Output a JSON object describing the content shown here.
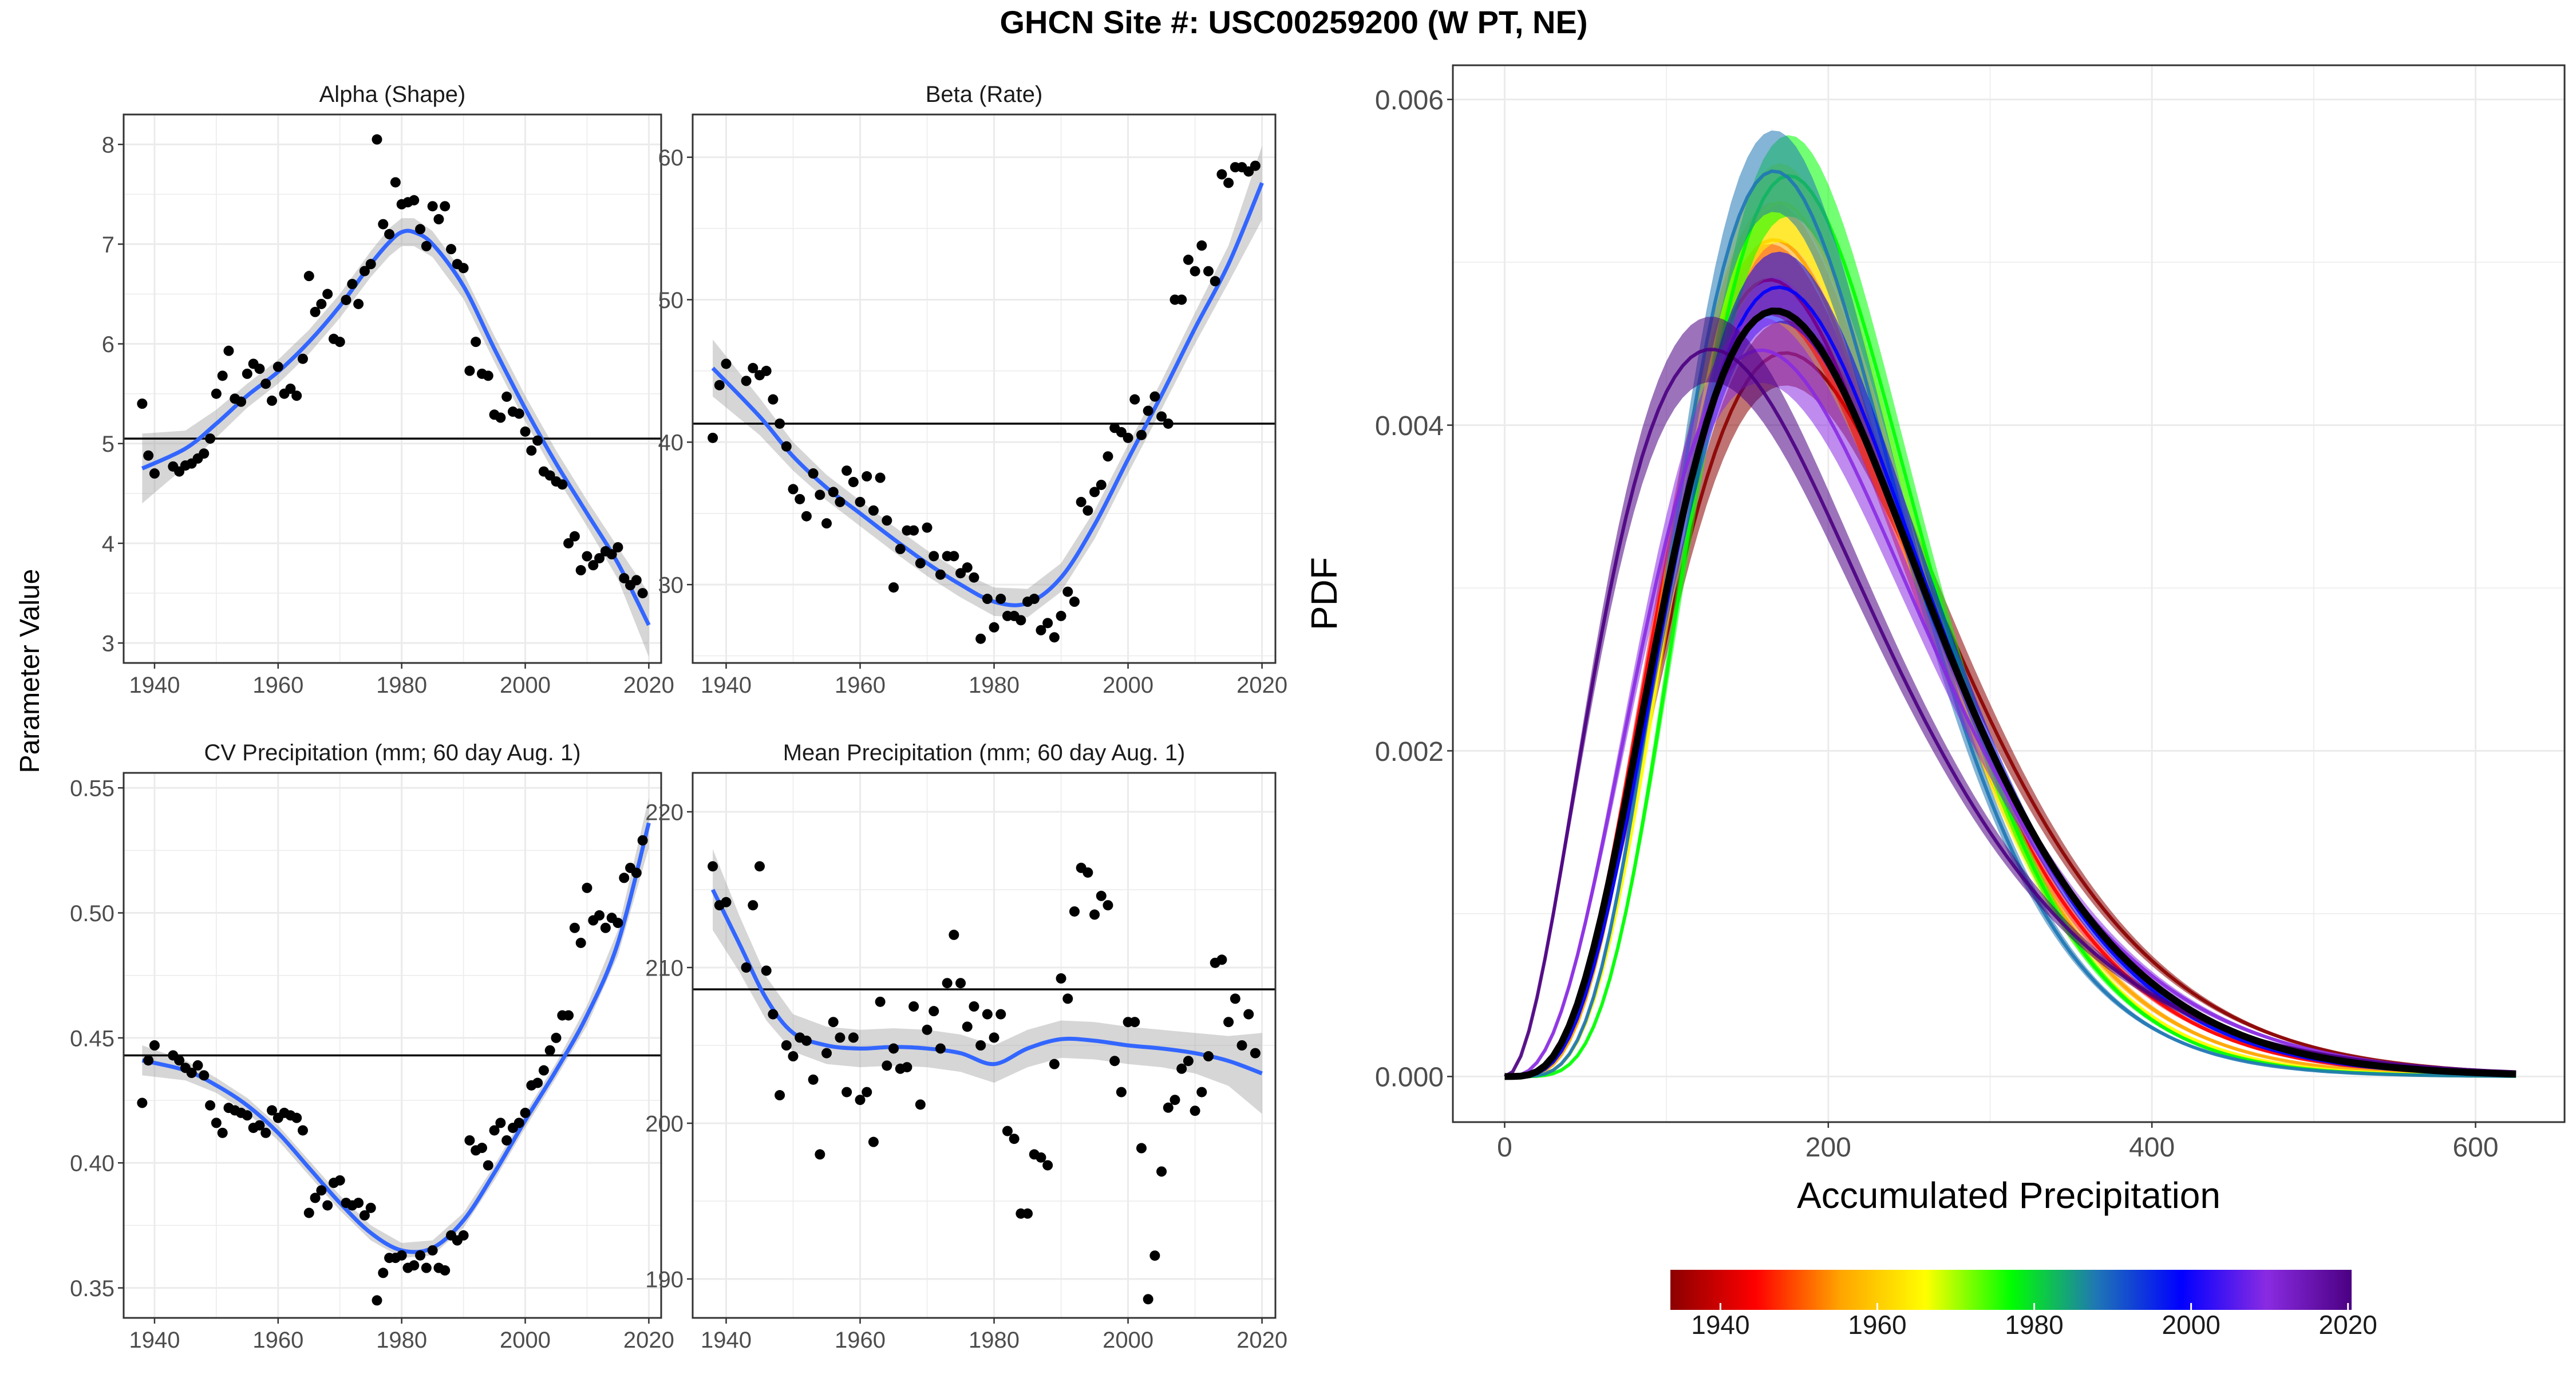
{
  "title": "GHCN Site #: USC00259200 (W PT, NE)",
  "shared_ylabel": "Parameter Value",
  "colorbar": {
    "ticks": [
      "1940",
      "1960",
      "1980",
      "2000",
      "2020"
    ],
    "colors": [
      "#8b0000",
      "#ff0000",
      "#ffa500",
      "#ffff00",
      "#00ff00",
      "#1f77b4",
      "#0000ff",
      "#8a2be2",
      "#4b0082"
    ]
  },
  "chart_data": [
    {
      "type": "scatter",
      "title": "Alpha (Shape)",
      "xlabel": "",
      "ylabel": "",
      "xlim": [
        1935,
        2022
      ],
      "ylim": [
        2.8,
        8.3
      ],
      "xticks": [
        1940,
        1960,
        1980,
        2000,
        2020
      ],
      "yticks": [
        3,
        4,
        5,
        6,
        7,
        8
      ],
      "reference_line": 5.05,
      "points": {
        "x": [
          1938,
          1939,
          1940,
          1943,
          1944,
          1945,
          1946,
          1947,
          1948,
          1949,
          1950,
          1951,
          1952,
          1953,
          1954,
          1955,
          1956,
          1957,
          1958,
          1959,
          1960,
          1961,
          1962,
          1963,
          1964,
          1965,
          1966,
          1967,
          1968,
          1969,
          1970,
          1971,
          1972,
          1973,
          1974,
          1975,
          1976,
          1977,
          1978,
          1979,
          1980,
          1981,
          1982,
          1983,
          1984,
          1985,
          1986,
          1987,
          1988,
          1989,
          1990,
          1991,
          1992,
          1993,
          1994,
          1995,
          1996,
          1997,
          1998,
          1999,
          2000,
          2001,
          2002,
          2003,
          2004,
          2005,
          2006,
          2007,
          2008,
          2009,
          2010,
          2011,
          2012,
          2013,
          2014,
          2015,
          2016,
          2017,
          2018,
          2019
        ],
        "y": [
          5.4,
          4.88,
          4.7,
          4.77,
          4.72,
          4.78,
          4.8,
          4.85,
          4.9,
          5.05,
          5.5,
          5.68,
          5.93,
          5.45,
          5.42,
          5.7,
          5.8,
          5.75,
          5.6,
          5.43,
          5.77,
          5.5,
          5.55,
          5.48,
          5.85,
          6.68,
          6.32,
          6.4,
          6.5,
          6.05,
          6.02,
          6.44,
          6.6,
          6.4,
          6.73,
          6.8,
          8.05,
          7.2,
          7.1,
          7.62,
          7.4,
          7.42,
          7.44,
          7.15,
          6.98,
          7.38,
          7.25,
          7.38,
          6.95,
          6.8,
          6.76,
          5.73,
          6.02,
          5.7,
          5.68,
          5.29,
          5.26,
          5.47,
          5.32,
          5.3,
          5.12,
          4.93,
          5.03,
          4.72,
          4.68,
          4.62,
          4.59,
          4.0,
          4.07,
          3.73,
          3.87,
          3.78,
          3.85,
          3.92,
          3.89,
          3.96,
          3.65,
          3.58,
          3.63,
          3.5
        ]
      },
      "trend": {
        "x": [
          1938,
          1945,
          1950,
          1955,
          1960,
          1965,
          1970,
          1975,
          1978,
          1980,
          1982,
          1985,
          1990,
          1995,
          2000,
          2005,
          2010,
          2015,
          2020
        ],
        "y": [
          4.75,
          4.95,
          5.2,
          5.48,
          5.72,
          6.02,
          6.38,
          6.8,
          7.02,
          7.12,
          7.12,
          7.0,
          6.58,
          5.95,
          5.35,
          4.8,
          4.3,
          3.8,
          3.18
        ]
      },
      "trend_se": [
        0.35,
        0.18,
        0.14,
        0.12,
        0.12,
        0.12,
        0.12,
        0.13,
        0.14,
        0.14,
        0.14,
        0.13,
        0.13,
        0.13,
        0.13,
        0.13,
        0.13,
        0.16,
        0.32
      ]
    },
    {
      "type": "scatter",
      "title": "Beta (Rate)",
      "xlabel": "",
      "ylabel": "",
      "xlim": [
        1935,
        2022
      ],
      "ylim": [
        24.5,
        63
      ],
      "xticks": [
        1940,
        1960,
        1980,
        2000,
        2020
      ],
      "yticks": [
        30,
        40,
        50,
        60
      ],
      "reference_line": 41.3,
      "points": {
        "x": [
          1938,
          1939,
          1940,
          1943,
          1944,
          1945,
          1946,
          1947,
          1948,
          1949,
          1950,
          1951,
          1952,
          1953,
          1954,
          1955,
          1956,
          1957,
          1958,
          1959,
          1960,
          1961,
          1962,
          1963,
          1964,
          1965,
          1966,
          1967,
          1968,
          1969,
          1970,
          1971,
          1972,
          1973,
          1974,
          1975,
          1976,
          1977,
          1978,
          1979,
          1980,
          1981,
          1982,
          1983,
          1984,
          1985,
          1986,
          1987,
          1988,
          1989,
          1990,
          1991,
          1992,
          1993,
          1994,
          1995,
          1996,
          1997,
          1998,
          1999,
          2000,
          2001,
          2002,
          2003,
          2004,
          2005,
          2006,
          2007,
          2008,
          2009,
          2010,
          2011,
          2012,
          2013,
          2014,
          2015,
          2016,
          2017,
          2018,
          2019
        ],
        "y": [
          40.3,
          44.0,
          45.5,
          44.3,
          45.2,
          44.7,
          45.0,
          43.0,
          41.3,
          39.7,
          36.7,
          36.0,
          34.8,
          37.8,
          36.3,
          34.3,
          36.5,
          35.8,
          38.0,
          37.2,
          35.8,
          37.6,
          35.2,
          37.5,
          34.5,
          29.8,
          32.5,
          33.8,
          33.8,
          31.5,
          34.0,
          32.0,
          30.7,
          32.0,
          32.0,
          30.8,
          31.2,
          30.5,
          26.2,
          29.0,
          27.0,
          29.0,
          27.8,
          27.8,
          27.5,
          28.8,
          29.0,
          26.8,
          27.3,
          26.3,
          27.8,
          29.5,
          28.8,
          35.8,
          35.2,
          36.5,
          37.0,
          39.0,
          41.0,
          40.7,
          40.3,
          43.0,
          40.5,
          42.2,
          43.2,
          41.8,
          41.3,
          50.0,
          50.0,
          52.8,
          52.0,
          53.8,
          52.0,
          51.3,
          58.8,
          58.2,
          59.3,
          59.3,
          59.0,
          59.4
        ]
      },
      "trend": {
        "x": [
          1938,
          1945,
          1950,
          1955,
          1960,
          1965,
          1970,
          1975,
          1980,
          1985,
          1990,
          1995,
          2000,
          2005,
          2010,
          2015,
          2020
        ],
        "y": [
          45.2,
          41.8,
          39.0,
          36.8,
          35.0,
          33.2,
          31.5,
          30.0,
          28.8,
          28.7,
          30.5,
          34.2,
          38.8,
          43.3,
          48.0,
          52.5,
          58.2
        ]
      },
      "trend_se": [
        2.0,
        1.3,
        1.0,
        0.9,
        0.9,
        0.9,
        0.9,
        0.9,
        1.0,
        1.0,
        1.0,
        1.0,
        1.0,
        1.0,
        1.1,
        1.3,
        2.6
      ]
    },
    {
      "type": "scatter",
      "title": "CV Precipitation (mm; 60 day Aug. 1)",
      "xlabel": "",
      "ylabel": "",
      "xlim": [
        1935,
        2022
      ],
      "ylim": [
        0.338,
        0.556
      ],
      "xticks": [
        1940,
        1960,
        1980,
        2000,
        2020
      ],
      "yticks": [
        0.35,
        0.4,
        0.45,
        0.5,
        0.55
      ],
      "reference_line": 0.443,
      "points": {
        "x": [
          1938,
          1939,
          1940,
          1943,
          1944,
          1945,
          1946,
          1947,
          1948,
          1949,
          1950,
          1951,
          1952,
          1953,
          1954,
          1955,
          1956,
          1957,
          1958,
          1959,
          1960,
          1961,
          1962,
          1963,
          1964,
          1965,
          1966,
          1967,
          1968,
          1969,
          1970,
          1971,
          1972,
          1973,
          1974,
          1975,
          1976,
          1977,
          1978,
          1979,
          1980,
          1981,
          1982,
          1983,
          1984,
          1985,
          1986,
          1987,
          1988,
          1989,
          1990,
          1991,
          1992,
          1993,
          1994,
          1995,
          1996,
          1997,
          1998,
          1999,
          2000,
          2001,
          2002,
          2003,
          2004,
          2005,
          2006,
          2007,
          2008,
          2009,
          2010,
          2011,
          2012,
          2013,
          2014,
          2015,
          2016,
          2017,
          2018,
          2019
        ],
        "y": [
          0.424,
          0.441,
          0.447,
          0.443,
          0.441,
          0.438,
          0.436,
          0.439,
          0.435,
          0.423,
          0.416,
          0.412,
          0.422,
          0.421,
          0.42,
          0.419,
          0.414,
          0.415,
          0.412,
          0.421,
          0.418,
          0.42,
          0.419,
          0.418,
          0.413,
          0.38,
          0.386,
          0.389,
          0.383,
          0.392,
          0.393,
          0.384,
          0.383,
          0.384,
          0.379,
          0.382,
          0.345,
          0.356,
          0.362,
          0.362,
          0.363,
          0.358,
          0.359,
          0.363,
          0.358,
          0.365,
          0.358,
          0.357,
          0.371,
          0.369,
          0.371,
          0.409,
          0.405,
          0.406,
          0.399,
          0.413,
          0.416,
          0.409,
          0.414,
          0.416,
          0.42,
          0.431,
          0.432,
          0.437,
          0.445,
          0.45,
          0.459,
          0.459,
          0.494,
          0.488,
          0.51,
          0.497,
          0.499,
          0.494,
          0.498,
          0.496,
          0.514,
          0.518,
          0.516,
          0.529
        ]
      },
      "trend": {
        "x": [
          1938,
          1945,
          1950,
          1955,
          1960,
          1965,
          1970,
          1975,
          1980,
          1985,
          1990,
          1995,
          2000,
          2005,
          2010,
          2015,
          2020
        ],
        "y": [
          0.441,
          0.437,
          0.431,
          0.423,
          0.412,
          0.398,
          0.384,
          0.372,
          0.365,
          0.366,
          0.377,
          0.396,
          0.417,
          0.437,
          0.459,
          0.488,
          0.536
        ]
      },
      "trend_se": [
        0.006,
        0.004,
        0.003,
        0.003,
        0.003,
        0.003,
        0.003,
        0.003,
        0.003,
        0.003,
        0.003,
        0.003,
        0.003,
        0.003,
        0.004,
        0.005,
        0.01
      ]
    },
    {
      "type": "scatter",
      "title": "Mean Precipitation (mm; 60 day Aug. 1)",
      "xlabel": "",
      "ylabel": "",
      "xlim": [
        1935,
        2022
      ],
      "ylim": [
        187.5,
        222.5
      ],
      "xticks": [
        1940,
        1960,
        1980,
        2000,
        2020
      ],
      "yticks": [
        190,
        200,
        210,
        220
      ],
      "reference_line": 208.6,
      "points": {
        "x": [
          1938,
          1939,
          1940,
          1943,
          1944,
          1945,
          1946,
          1947,
          1948,
          1949,
          1950,
          1951,
          1952,
          1953,
          1954,
          1955,
          1956,
          1957,
          1958,
          1959,
          1960,
          1961,
          1962,
          1963,
          1964,
          1965,
          1966,
          1967,
          1968,
          1969,
          1970,
          1971,
          1972,
          1973,
          1974,
          1975,
          1976,
          1977,
          1978,
          1979,
          1980,
          1981,
          1982,
          1983,
          1984,
          1985,
          1986,
          1987,
          1988,
          1989,
          1990,
          1991,
          1992,
          1993,
          1994,
          1995,
          1996,
          1997,
          1998,
          1999,
          2000,
          2001,
          2002,
          2003,
          2004,
          2005,
          2006,
          2007,
          2008,
          2009,
          2010,
          2011,
          2012,
          2013,
          2014,
          2015,
          2016,
          2017,
          2018,
          2019
        ],
        "y": [
          216.5,
          214.0,
          214.2,
          210.0,
          214.0,
          216.5,
          209.8,
          207.0,
          201.8,
          205.0,
          204.3,
          205.5,
          205.3,
          202.8,
          198.0,
          204.5,
          206.5,
          205.5,
          202.0,
          205.5,
          201.5,
          202.0,
          198.8,
          207.8,
          203.7,
          204.8,
          203.5,
          203.6,
          207.5,
          201.2,
          206.0,
          207.2,
          204.8,
          209.0,
          212.1,
          209.0,
          206.2,
          207.5,
          205.0,
          207.0,
          205.5,
          207.0,
          199.5,
          199.0,
          194.2,
          194.2,
          198.0,
          197.8,
          197.3,
          203.8,
          209.3,
          208.0,
          213.6,
          216.4,
          216.1,
          213.4,
          214.6,
          214.0,
          204.0,
          202.0,
          206.5,
          206.5,
          198.4,
          188.7,
          191.5,
          196.9,
          201.0,
          201.5,
          203.5,
          204.0,
          200.8,
          202.0,
          204.3,
          210.3,
          210.5,
          206.5,
          208.0,
          205.0,
          207.0,
          204.5
        ]
      },
      "trend": {
        "x": [
          1938,
          1942,
          1946,
          1950,
          1955,
          1960,
          1965,
          1970,
          1975,
          1980,
          1985,
          1990,
          1995,
          2000,
          2005,
          2010,
          2015,
          2020
        ],
        "y": [
          215.0,
          211.5,
          208.0,
          205.8,
          205.0,
          204.8,
          204.9,
          204.8,
          204.5,
          203.8,
          204.8,
          205.4,
          205.3,
          205.0,
          204.8,
          204.5,
          204.0,
          203.2
        ]
      },
      "trend_se": [
        2.6,
        1.8,
        1.4,
        1.2,
        1.2,
        1.2,
        1.2,
        1.2,
        1.2,
        1.2,
        1.2,
        1.2,
        1.2,
        1.2,
        1.2,
        1.3,
        1.6,
        2.6
      ]
    },
    {
      "type": "line",
      "title": "",
      "xlabel": "Accumulated Precipitation",
      "ylabel": "PDF",
      "xlim": [
        -32,
        655
      ],
      "ylim": [
        -0.00028,
        0.00621
      ],
      "xticks": [
        0,
        200,
        400,
        600
      ],
      "yticks": [
        0.0,
        0.002,
        0.004,
        0.006
      ],
      "ytick_labels": [
        "0.000",
        "0.002",
        "0.004",
        "0.006"
      ],
      "x_max": 625,
      "distribution": "gamma",
      "series": [
        {
          "name": "1940",
          "alpha": 4.9,
          "beta": 44.5,
          "color": "#8b0000"
        },
        {
          "name": "1950",
          "alpha": 5.2,
          "beta": 39.0,
          "color": "#ff0000"
        },
        {
          "name": "1960",
          "alpha": 5.75,
          "beta": 35.0,
          "color": "#ffa500"
        },
        {
          "name": "1970",
          "alpha": 6.4,
          "beta": 31.5,
          "color": "#ffff00"
        },
        {
          "name": "1980",
          "alpha": 7.1,
          "beta": 28.8,
          "color": "#00ff00"
        },
        {
          "name": "1990",
          "alpha": 6.55,
          "beta": 30.0,
          "color": "#1f77b4"
        },
        {
          "name": "2000",
          "alpha": 5.4,
          "beta": 38.5,
          "color": "#0000ff"
        },
        {
          "name": "2010",
          "alpha": 4.3,
          "beta": 48.0,
          "color": "#8a2be2"
        },
        {
          "name": "2020",
          "alpha": 3.2,
          "beta": 58.0,
          "color": "#4b0082"
        },
        {
          "name": "overall",
          "alpha": 5.05,
          "beta": 41.3,
          "color": "#000000"
        }
      ]
    }
  ]
}
